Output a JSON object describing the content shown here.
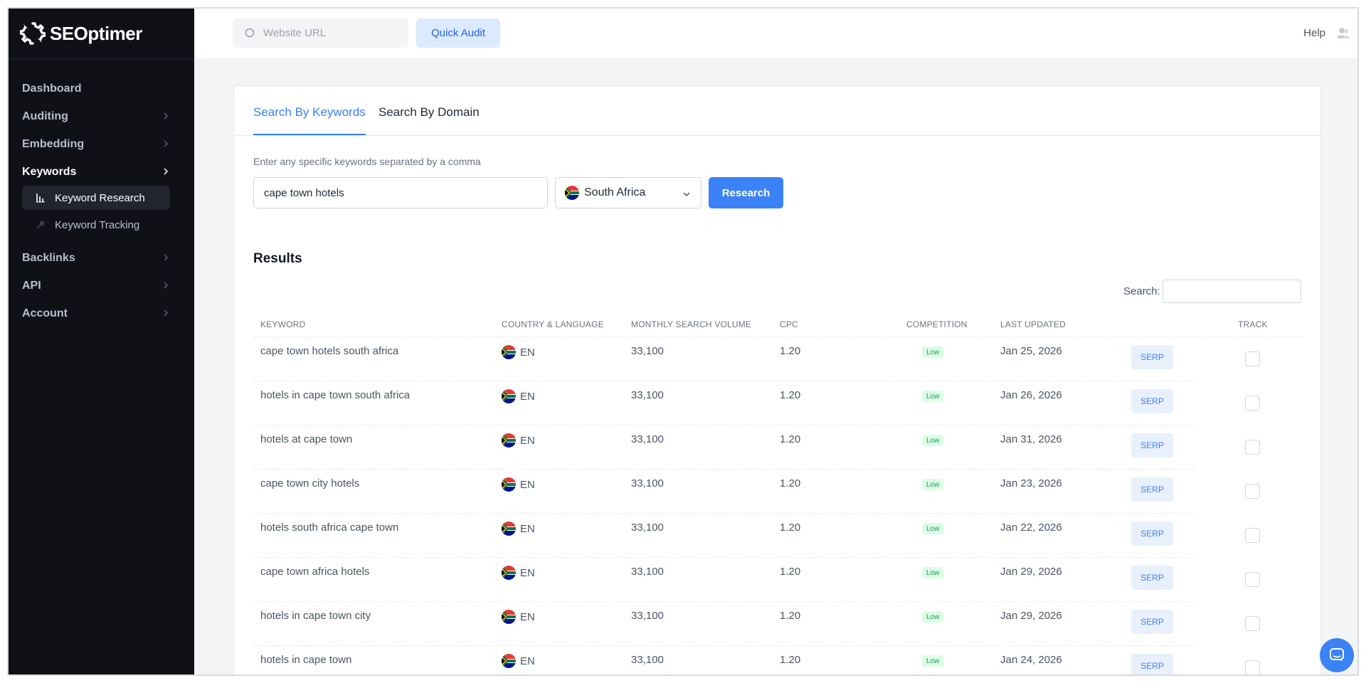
{
  "brand": {
    "name": "SEOptimer",
    "logo_icon": "gear-recycle-logo"
  },
  "sidebar": {
    "items": [
      {
        "label": "Dashboard",
        "has_chevron": false
      },
      {
        "label": "Auditing",
        "has_chevron": true
      },
      {
        "label": "Embedding",
        "has_chevron": true
      },
      {
        "label": "Keywords",
        "has_chevron": true,
        "active": true
      },
      {
        "label": "Backlinks",
        "has_chevron": true
      },
      {
        "label": "API",
        "has_chevron": true
      },
      {
        "label": "Account",
        "has_chevron": true
      }
    ],
    "subitems": [
      {
        "label": "Keyword Research",
        "icon": "bar-chart-icon",
        "active": true
      },
      {
        "label": "Keyword Tracking",
        "icon": "key-icon",
        "active": false
      }
    ]
  },
  "topbar": {
    "url_placeholder": "Website URL",
    "quick_audit_label": "Quick Audit",
    "help_label": "Help"
  },
  "tabs": [
    {
      "label": "Search By Keywords",
      "active": true
    },
    {
      "label": "Search By Domain",
      "active": false
    }
  ],
  "form": {
    "hint": "Enter any specific keywords separated by a comma",
    "keywords_value": "cape town hotels",
    "country": "South Africa",
    "research_label": "Research"
  },
  "results": {
    "title": "Results",
    "search_label": "Search:",
    "search_value": "",
    "columns": [
      "KEYWORD",
      "COUNTRY & LANGUAGE",
      "MONTHLY SEARCH VOLUME",
      "CPC",
      "COMPETITION",
      "LAST UPDATED",
      "TRACK"
    ],
    "serp_label": "SERP",
    "rows": [
      {
        "keyword": "cape town hotels south africa",
        "lang": "EN",
        "volume": "33,100",
        "cpc": "1.20",
        "competition": "Low",
        "updated": "Jan 25, 2026",
        "tracked": false
      },
      {
        "keyword": "hotels in cape town south africa",
        "lang": "EN",
        "volume": "33,100",
        "cpc": "1.20",
        "competition": "Low",
        "updated": "Jan 26, 2026",
        "tracked": false
      },
      {
        "keyword": "hotels at cape town",
        "lang": "EN",
        "volume": "33,100",
        "cpc": "1.20",
        "competition": "Low",
        "updated": "Jan 31, 2026",
        "tracked": false
      },
      {
        "keyword": "cape town city hotels",
        "lang": "EN",
        "volume": "33,100",
        "cpc": "1.20",
        "competition": "Low",
        "updated": "Jan 23, 2026",
        "tracked": false
      },
      {
        "keyword": "hotels south africa cape town",
        "lang": "EN",
        "volume": "33,100",
        "cpc": "1.20",
        "competition": "Low",
        "updated": "Jan 22, 2026",
        "tracked": false
      },
      {
        "keyword": "cape town africa hotels",
        "lang": "EN",
        "volume": "33,100",
        "cpc": "1.20",
        "competition": "Low",
        "updated": "Jan 29, 2026",
        "tracked": false
      },
      {
        "keyword": "hotels in cape town city",
        "lang": "EN",
        "volume": "33,100",
        "cpc": "1.20",
        "competition": "Low",
        "updated": "Jan 29, 2026",
        "tracked": false
      },
      {
        "keyword": "hotels in cape town",
        "lang": "EN",
        "volume": "33,100",
        "cpc": "1.20",
        "competition": "Low",
        "updated": "Jan 24, 2026",
        "tracked": false
      }
    ]
  },
  "colors": {
    "accent": "#3b82f6",
    "sidebar_bg": "#0f1117",
    "badge_low_bg": "#dcfce7",
    "badge_low_text": "#16a34a"
  },
  "chat": {
    "icon": "chat-bubble-icon"
  }
}
